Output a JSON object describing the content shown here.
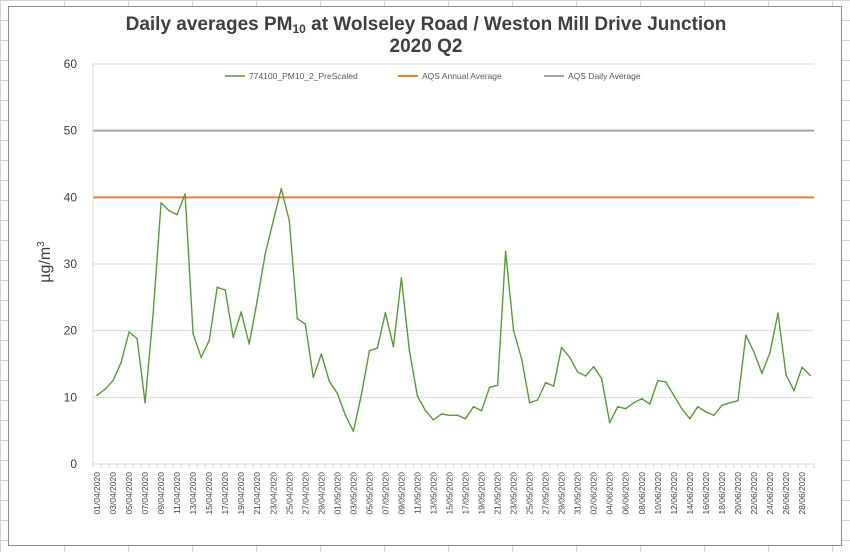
{
  "title": {
    "prefix": "Daily averages PM",
    "subscript": "10",
    "suffix": " at Wolseley Road / Weston Mill Drive Junction",
    "line2": "2020 Q2"
  },
  "ylabel_base": "µg/m",
  "ylabel_sup": "3",
  "colors": {
    "series": "#5b9a3c",
    "annual": "#ed7d31",
    "daily": "#a5a5a5",
    "gridline": "#d9d9d9"
  },
  "chart_data": {
    "type": "line",
    "title": "Daily averages PM10 at Wolseley Road / Weston Mill Drive Junction 2020 Q2",
    "xlabel": "",
    "ylabel": "µg/m3",
    "ylim": [
      0,
      60
    ],
    "yticks": [
      0,
      10,
      20,
      30,
      40,
      50,
      60
    ],
    "grid": true,
    "legend_position": "top",
    "x_tick_labels": [
      "01/04/2020",
      "03/04/2020",
      "05/04/2020",
      "07/04/2020",
      "09/04/2020",
      "11/04/2020",
      "13/04/2020",
      "15/04/2020",
      "17/04/2020",
      "19/04/2020",
      "21/04/2020",
      "23/04/2020",
      "25/04/2020",
      "27/04/2020",
      "29/04/2020",
      "01/05/2020",
      "03/05/2020",
      "05/05/2020",
      "07/05/2020",
      "09/05/2020",
      "11/05/2020",
      "13/05/2020",
      "15/05/2020",
      "17/05/2020",
      "19/05/2020",
      "21/05/2020",
      "23/05/2020",
      "25/05/2020",
      "27/05/2020",
      "29/05/2020",
      "31/05/2020",
      "02/06/2020",
      "04/06/2020",
      "06/06/2020",
      "08/06/2020",
      "10/06/2020",
      "12/06/2020",
      "14/06/2020",
      "16/06/2020",
      "18/06/2020",
      "20/06/2020",
      "22/06/2020",
      "24/06/2020",
      "26/06/2020",
      "28/06/2020"
    ],
    "x_start": "01/04/2020",
    "x_end": "30/06/2020",
    "series": [
      {
        "name": "774100_PM10_2_PreScaled",
        "values": [
          10.3,
          11.2,
          12.5,
          15.2,
          19.8,
          18.8,
          9.2,
          22.5,
          39.2,
          38.0,
          37.4,
          40.5,
          19.5,
          16.0,
          18.5,
          26.5,
          26.1,
          19.0,
          22.8,
          18.0,
          24.5,
          31.5,
          36.5,
          41.3,
          36.5,
          21.8,
          21.0,
          13.0,
          16.5,
          12.4,
          10.6,
          7.3,
          4.9,
          10.4,
          17.0,
          17.4,
          22.7,
          17.6,
          27.9,
          17.0,
          10.2,
          8.0,
          6.6,
          7.5,
          7.3,
          7.3,
          6.8,
          8.6,
          8.0,
          11.5,
          11.8,
          31.9,
          20.0,
          15.8,
          9.2,
          9.6,
          12.2,
          11.7,
          17.5,
          16.0,
          13.8,
          13.2,
          14.6,
          12.8,
          6.2,
          8.6,
          8.3,
          9.2,
          9.8,
          9.0,
          12.5,
          12.3,
          10.3,
          8.3,
          6.8,
          8.6,
          7.8,
          7.3,
          8.8,
          9.2,
          9.5,
          19.3,
          16.8,
          13.6,
          16.7,
          22.6,
          13.4,
          11.0,
          14.5,
          13.3
        ],
        "color": "#5b9a3c"
      },
      {
        "name": "AQS Annual Average",
        "value": 40,
        "color": "#ed7d31"
      },
      {
        "name": "AQS Daily Average",
        "value": 50,
        "color": "#a5a5a5"
      }
    ]
  }
}
